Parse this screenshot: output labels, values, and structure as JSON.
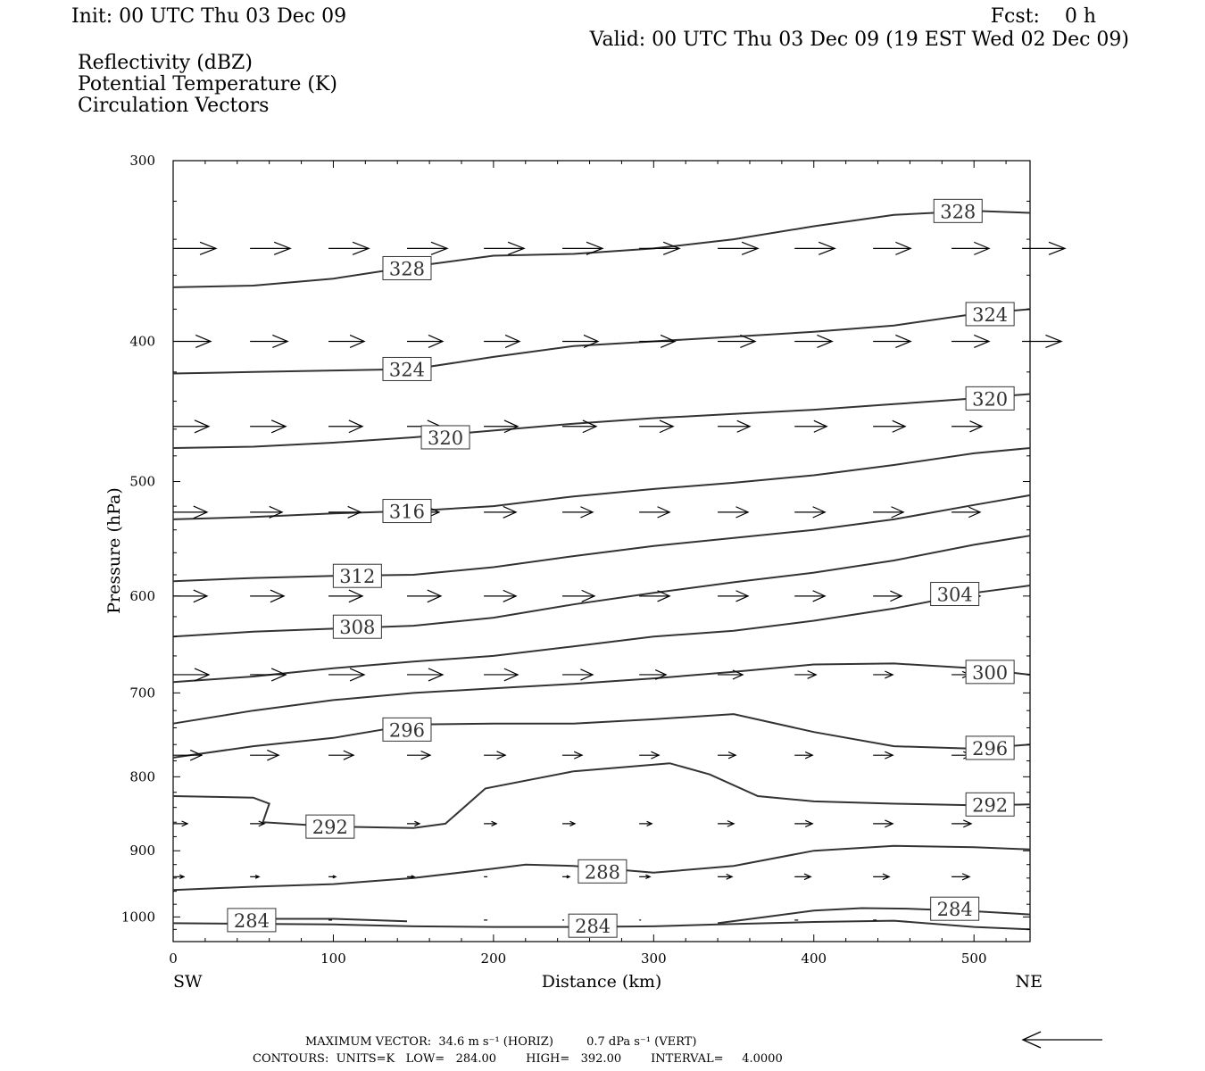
{
  "header": {
    "init": "Init: 00 UTC Thu 03 Dec 09",
    "fcst": "Fcst:    0 h",
    "valid": "Valid: 00 UTC Thu 03 Dec 09 (19 EST Wed 02 Dec 09)",
    "fields": [
      {
        "label": "Reflectivity (dBZ)",
        "color": "#000000"
      },
      {
        "label": "Potential Temperature (K)",
        "color": "#555555"
      },
      {
        "label": "Circulation Vectors",
        "color": "#000000"
      }
    ]
  },
  "footer": {
    "max_vector": "MAXIMUM VECTOR:  34.6 m s⁻¹ (HORIZ)         0.7 dPa s⁻¹ (VERT)",
    "contours": "CONTOURS:  UNITS=K   LOW=   284.00        HIGH=   392.00        INTERVAL=     4.0000"
  },
  "chart_data": {
    "type": "line",
    "title": "",
    "xlabel": "Distance (km)",
    "ylabel": "Pressure (hPa)",
    "xlim": [
      0,
      535
    ],
    "ylim": [
      1040,
      300
    ],
    "y_scale": "log",
    "x_ticks": [
      0,
      100,
      200,
      300,
      400,
      500
    ],
    "y_ticks": [
      300,
      400,
      500,
      600,
      700,
      800,
      900,
      1000
    ],
    "x_end_labels": {
      "left": "SW",
      "right": "NE"
    },
    "grid": false,
    "series": [
      {
        "name": "",
        "label": "328",
        "x": [
          0,
          50,
          100,
          150,
          200,
          250,
          300,
          350,
          400,
          450,
          500,
          535
        ],
        "y": [
          367,
          366,
          362,
          355,
          349,
          348,
          345,
          340,
          333,
          327,
          325,
          326
        ],
        "labels": [
          {
            "x": 146,
            "y": 356
          },
          {
            "x": 490,
            "y": 325
          }
        ]
      },
      {
        "name": "",
        "label": "324",
        "x": [
          0,
          50,
          100,
          150,
          200,
          250,
          300,
          350,
          400,
          450,
          500,
          535
        ],
        "y": [
          421,
          420,
          419,
          418,
          410,
          403,
          400,
          397,
          394,
          390,
          383,
          380
        ],
        "labels": [
          {
            "x": 146,
            "y": 418
          },
          {
            "x": 510,
            "y": 383
          }
        ]
      },
      {
        "name": "",
        "label": "320",
        "x": [
          0,
          50,
          100,
          150,
          200,
          250,
          300,
          350,
          400,
          450,
          500,
          535
        ],
        "y": [
          474,
          473,
          470,
          466,
          461,
          456,
          452,
          449,
          446,
          442,
          438,
          435
        ],
        "labels": [
          {
            "x": 170,
            "y": 466
          },
          {
            "x": 510,
            "y": 438
          }
        ]
      },
      {
        "name": "",
        "label": "316",
        "x": [
          0,
          50,
          100,
          150,
          200,
          250,
          300,
          350,
          400,
          450,
          500,
          535
        ],
        "y": [
          531,
          529,
          526,
          524,
          520,
          512,
          506,
          501,
          495,
          487,
          478,
          474
        ],
        "labels": [
          {
            "x": 146,
            "y": 524
          }
        ]
      },
      {
        "name": "",
        "label": "312",
        "x": [
          0,
          50,
          100,
          150,
          200,
          250,
          300,
          350,
          400,
          450,
          500,
          535
        ],
        "y": [
          586,
          583,
          581,
          580,
          573,
          563,
          554,
          547,
          540,
          531,
          519,
          511
        ],
        "labels": [
          {
            "x": 115,
            "y": 581
          }
        ]
      },
      {
        "name": "",
        "label": "308",
        "x": [
          0,
          50,
          100,
          150,
          200,
          250,
          300,
          350,
          400,
          450,
          500,
          535
        ],
        "y": [
          640,
          635,
          632,
          629,
          621,
          608,
          597,
          587,
          578,
          567,
          553,
          545
        ],
        "labels": [
          {
            "x": 115,
            "y": 630
          }
        ]
      },
      {
        "name": "",
        "label": "304",
        "x": [
          0,
          50,
          100,
          150,
          200,
          250,
          300,
          350,
          400,
          450,
          500,
          535
        ],
        "y": [
          688,
          682,
          673,
          666,
          660,
          650,
          640,
          634,
          624,
          612,
          597,
          590
        ],
        "labels": [
          {
            "x": 488,
            "y": 598
          }
        ]
      },
      {
        "name": "",
        "label": "300",
        "x": [
          0,
          50,
          100,
          150,
          200,
          250,
          300,
          350,
          400,
          450,
          500,
          535
        ],
        "y": [
          735,
          720,
          708,
          700,
          695,
          690,
          684,
          677,
          669,
          668,
          673,
          680
        ],
        "labels": [
          {
            "x": 510,
            "y": 677
          }
        ]
      },
      {
        "name": "",
        "label": "296",
        "x": [
          0,
          50,
          100,
          150,
          200,
          250,
          300,
          350,
          400,
          450,
          500,
          535
        ],
        "y": [
          776,
          762,
          752,
          736,
          735,
          735,
          730,
          724,
          745,
          762,
          765,
          760
        ],
        "labels": [
          {
            "x": 146,
            "y": 742
          },
          {
            "x": 510,
            "y": 764
          }
        ]
      },
      {
        "name": "",
        "label": "292",
        "x": [
          0,
          50,
          60,
          56,
          100,
          150,
          170,
          195,
          250,
          310,
          335,
          365,
          400,
          450,
          500,
          535
        ],
        "y": [
          825,
          827,
          835,
          860,
          866,
          868,
          862,
          815,
          793,
          783,
          797,
          825,
          832,
          835,
          837,
          836
        ],
        "labels": [
          {
            "x": 98,
            "y": 866
          },
          {
            "x": 510,
            "y": 836
          }
        ]
      },
      {
        "name": "",
        "label": "288",
        "x": [
          0,
          50,
          100,
          150,
          200,
          220,
          250,
          300,
          350,
          400,
          450,
          500,
          535
        ],
        "y": [
          958,
          953,
          949,
          940,
          926,
          920,
          922,
          932,
          922,
          900,
          893,
          895,
          898
        ],
        "labels": [
          {
            "x": 268,
            "y": 930
          }
        ]
      },
      {
        "name": "",
        "label": "284",
        "x": [
          0,
          50,
          100,
          150,
          200,
          250,
          300,
          340,
          400,
          450,
          500,
          535
        ],
        "y": [
          1010,
          1011,
          1012,
          1015,
          1016,
          1016,
          1015,
          1012,
          1008,
          1006,
          1016,
          1020
        ],
        "labels": [
          {
            "x": 49,
            "y": 1005
          },
          {
            "x": 262,
            "y": 1014
          }
        ]
      },
      {
        "name": "",
        "label": "",
        "x": [
          35,
          100,
          146
        ],
        "y": [
          1003,
          1003,
          1007
        ],
        "labels": []
      },
      {
        "name": "",
        "label": "284",
        "x": [
          340,
          370,
          400,
          430,
          460,
          500,
          535
        ],
        "y": [
          1010,
          1000,
          990,
          986,
          987,
          991,
          996
        ],
        "labels": [
          {
            "x": 488,
            "y": 987
          }
        ]
      }
    ],
    "vector_rows": [
      {
        "p": 345,
        "x": [
          0,
          48,
          97,
          146,
          194,
          243,
          291,
          340,
          388,
          437,
          486,
          530
        ],
        "len": [
          48,
          45,
          45,
          45,
          45,
          45,
          45,
          45,
          45,
          42,
          42,
          48
        ]
      },
      {
        "p": 400,
        "x": [
          0,
          48,
          97,
          146,
          194,
          243,
          291,
          340,
          388,
          437,
          486,
          530
        ],
        "len": [
          42,
          42,
          40,
          40,
          40,
          40,
          40,
          42,
          42,
          42,
          42,
          44
        ]
      },
      {
        "p": 458,
        "x": [
          0,
          48,
          97,
          146,
          194,
          243,
          291,
          340,
          388,
          437,
          486
        ],
        "len": [
          40,
          40,
          38,
          38,
          38,
          38,
          38,
          36,
          36,
          36,
          34
        ]
      },
      {
        "p": 525,
        "x": [
          0,
          48,
          97,
          146,
          194,
          243,
          291,
          340,
          388,
          437,
          486
        ],
        "len": [
          38,
          36,
          36,
          36,
          36,
          34,
          34,
          34,
          34,
          34,
          32
        ]
      },
      {
        "p": 600,
        "x": [
          0,
          48,
          97,
          146,
          194,
          243,
          291,
          340,
          388,
          437,
          486
        ],
        "len": [
          38,
          38,
          38,
          38,
          36,
          36,
          34,
          34,
          34,
          32,
          32
        ]
      },
      {
        "p": 680,
        "x": [
          0,
          48,
          97,
          146,
          194,
          243,
          291,
          340,
          388,
          437,
          486
        ],
        "len": [
          40,
          40,
          40,
          40,
          38,
          34,
          30,
          28,
          24,
          22,
          20
        ]
      },
      {
        "p": 773,
        "x": [
          0,
          48,
          97,
          146,
          194,
          243,
          291,
          340,
          388,
          437,
          486
        ],
        "len": [
          32,
          32,
          28,
          26,
          24,
          22,
          22,
          20,
          20,
          22,
          22
        ]
      },
      {
        "p": 862,
        "x": [
          0,
          48,
          97,
          146,
          194,
          243,
          291,
          340,
          388,
          437,
          486
        ],
        "len": [
          16,
          16,
          16,
          14,
          14,
          14,
          14,
          18,
          20,
          22,
          22
        ]
      },
      {
        "p": 938,
        "x": [
          0,
          48,
          97,
          146,
          194,
          243,
          291,
          340,
          388,
          437,
          486
        ],
        "len": [
          12,
          10,
          8,
          8,
          4,
          8,
          12,
          16,
          18,
          18,
          20
        ]
      },
      {
        "p": 1005,
        "x": [
          97,
          194,
          243,
          291,
          388,
          437,
          486
        ],
        "len": [
          4,
          4,
          2,
          2,
          4,
          4,
          4
        ]
      }
    ],
    "reference_vector": {
      "direction": "left",
      "magnitude_label": "34.6 m s⁻¹"
    }
  }
}
